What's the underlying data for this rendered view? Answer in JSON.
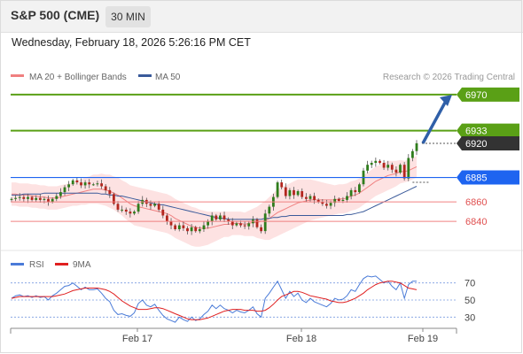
{
  "header": {
    "title": "S&P 500 (CME)",
    "timeframe": "30 MIN",
    "datetime": "Wednesday, February 18, 2026 5:26:16 PM CET"
  },
  "legend": {
    "ma20": "MA 20 + Bollinger Bands",
    "ma50": "MA 50",
    "credit": "Research © 2026 Trading Central",
    "ma20_color": "#f08080",
    "ma50_color": "#3a5a9a"
  },
  "rsi_legend": {
    "rsi": "RSI",
    "ma9": "9MA",
    "rsi_color": "#4a7bd8",
    "ma9_color": "#e02020"
  },
  "chart_data": [
    {
      "type": "candlestick",
      "ylim": [
        6822,
        6978
      ],
      "x_labels": [
        "Feb 17",
        "Feb 18",
        "Feb 19"
      ],
      "levels": [
        {
          "value": 6970,
          "label": "6970",
          "color": "#5aa016",
          "kind": "resistance"
        },
        {
          "value": 6933,
          "label": "6933",
          "color": "#5aa016",
          "kind": "resistance"
        },
        {
          "value": 6920,
          "label": "6920",
          "color": "#333333",
          "kind": "last"
        },
        {
          "value": 6885,
          "label": "6885",
          "color": "#1e64f0",
          "kind": "pivot"
        },
        {
          "value": 6860,
          "label": "6860",
          "color": "#e05050",
          "kind": "support"
        },
        {
          "value": 6840,
          "label": "6840",
          "color": "#e05050",
          "kind": "support"
        }
      ],
      "close": [
        6863,
        6864,
        6865,
        6863,
        6865,
        6862,
        6864,
        6862,
        6863,
        6860,
        6863,
        6866,
        6870,
        6875,
        6878,
        6882,
        6880,
        6877,
        6880,
        6878,
        6878,
        6879,
        6876,
        6872,
        6868,
        6858,
        6852,
        6852,
        6850,
        6848,
        6850,
        6858,
        6862,
        6858,
        6856,
        6858,
        6852,
        6846,
        6840,
        6836,
        6832,
        6836,
        6833,
        6830,
        6834,
        6830,
        6832,
        6836,
        6840,
        6846,
        6842,
        6846,
        6842,
        6840,
        6836,
        6838,
        6836,
        6835,
        6838,
        6842,
        6834,
        6830,
        6848,
        6855,
        6865,
        6880,
        6875,
        6866,
        6872,
        6867,
        6871,
        6865,
        6863,
        6866,
        6862,
        6860,
        6858,
        6856,
        6859,
        6863,
        6861,
        6862,
        6866,
        6872,
        6870,
        6878,
        6892,
        6898,
        6900,
        6902,
        6900,
        6895,
        6898,
        6893,
        6890,
        6898,
        6884,
        6905,
        6912,
        6920
      ],
      "ma20": [
        6868,
        6868,
        6867,
        6867,
        6867,
        6866,
        6866,
        6865,
        6865,
        6864,
        6864,
        6864,
        6865,
        6866,
        6867,
        6868,
        6869,
        6870,
        6871,
        6872,
        6873,
        6873,
        6873,
        6872,
        6871,
        6869,
        6867,
        6864,
        6861,
        6858,
        6856,
        6855,
        6854,
        6853,
        6852,
        6851,
        6850,
        6849,
        6848,
        6846,
        6843,
        6841,
        6839,
        6837,
        6835,
        6834,
        6833,
        6833,
        6833,
        6834,
        6835,
        6836,
        6837,
        6837,
        6838,
        6838,
        6838,
        6837,
        6838,
        6839,
        6839,
        6840,
        6841,
        6843,
        6846,
        6849,
        6851,
        6853,
        6855,
        6857,
        6859,
        6860,
        6861,
        6862,
        6862,
        6862,
        6862,
        6862,
        6862,
        6862,
        6863,
        6863,
        6864,
        6866,
        6867,
        6869,
        6872,
        6875,
        6878,
        6881,
        6883,
        6885,
        6887,
        6888,
        6889,
        6891,
        6891,
        6892,
        6894,
        6896
      ],
      "bb_width": [
        12,
        12,
        12,
        12,
        12,
        12,
        12,
        12,
        12,
        12,
        12,
        12,
        12,
        12,
        12,
        12,
        13,
        13,
        14,
        14,
        15,
        15,
        16,
        16,
        17,
        17,
        18,
        18,
        19,
        19,
        20,
        20,
        20,
        20,
        20,
        20,
        20,
        20,
        20,
        20,
        20,
        20,
        20,
        20,
        20,
        20,
        19,
        18,
        17,
        16,
        15,
        14,
        13,
        13,
        12,
        12,
        12,
        12,
        13,
        14,
        16,
        18,
        20,
        22,
        23,
        24,
        24,
        24,
        24,
        24,
        24,
        23,
        22,
        21,
        20,
        19,
        18,
        17,
        16,
        15,
        15,
        15,
        15,
        15,
        15,
        15,
        15,
        15,
        15,
        15,
        15,
        15,
        15,
        14,
        13,
        12,
        11,
        11,
        11,
        11
      ],
      "ma50": [
        6867,
        6867,
        6867,
        6868,
        6868,
        6868,
        6868,
        6868,
        6869,
        6869,
        6869,
        6869,
        6869,
        6869,
        6869,
        6869,
        6869,
        6869,
        6869,
        6869,
        6869,
        6869,
        6868,
        6868,
        6867,
        6867,
        6866,
        6866,
        6865,
        6864,
        6863,
        6862,
        6861,
        6860,
        6859,
        6858,
        6857,
        6857,
        6856,
        6855,
        6854,
        6853,
        6852,
        6851,
        6850,
        6849,
        6848,
        6847,
        6846,
        6845,
        6844,
        6843,
        6843,
        6842,
        6842,
        6842,
        6842,
        6842,
        6842,
        6842,
        6842,
        6842,
        6843,
        6843,
        6844,
        6844,
        6845,
        6845,
        6846,
        6846,
        6846,
        6846,
        6846,
        6846,
        6846,
        6846,
        6846,
        6846,
        6846,
        6846,
        6846,
        6846,
        6847,
        6847,
        6848,
        6849,
        6850,
        6852,
        6854,
        6856,
        6858,
        6860,
        6862,
        6864,
        6866,
        6868,
        6870,
        6872,
        6874,
        6876
      ]
    },
    {
      "type": "line",
      "ylim": [
        20,
        80
      ],
      "y_ticks": [
        70,
        50,
        30
      ],
      "reference_lines": [
        70,
        50,
        30
      ],
      "rsi": [
        52,
        55,
        56,
        54,
        55,
        53,
        55,
        53,
        54,
        50,
        55,
        58,
        62,
        66,
        67,
        70,
        66,
        62,
        65,
        62,
        62,
        63,
        58,
        52,
        48,
        38,
        33,
        34,
        32,
        31,
        35,
        46,
        50,
        44,
        42,
        45,
        38,
        32,
        28,
        26,
        24,
        30,
        27,
        25,
        30,
        26,
        28,
        33,
        37,
        44,
        40,
        44,
        40,
        38,
        35,
        38,
        36,
        35,
        38,
        42,
        34,
        30,
        52,
        58,
        65,
        72,
        62,
        52,
        60,
        54,
        58,
        50,
        47,
        52,
        48,
        46,
        44,
        42,
        46,
        52,
        50,
        51,
        55,
        62,
        60,
        68,
        75,
        78,
        77,
        78,
        74,
        70,
        72,
        66,
        62,
        70,
        52,
        68,
        72,
        72
      ],
      "ma9": [
        52,
        53,
        54,
        54,
        54,
        54,
        54,
        54,
        54,
        54,
        54,
        55,
        56,
        57,
        59,
        61,
        62,
        63,
        64,
        64,
        64,
        64,
        63,
        62,
        60,
        57,
        53,
        49,
        46,
        43,
        41,
        39,
        39,
        39,
        40,
        41,
        41,
        40,
        38,
        36,
        34,
        32,
        30,
        28,
        27,
        27,
        27,
        28,
        29,
        31,
        33,
        35,
        37,
        38,
        39,
        39,
        39,
        38,
        38,
        38,
        37,
        37,
        38,
        41,
        45,
        50,
        54,
        56,
        58,
        60,
        60,
        59,
        57,
        55,
        54,
        53,
        52,
        51,
        49,
        48,
        47,
        47,
        48,
        50,
        52,
        55,
        58,
        62,
        65,
        68,
        70,
        71,
        72,
        72,
        71,
        70,
        67,
        64,
        63,
        62
      ]
    }
  ]
}
